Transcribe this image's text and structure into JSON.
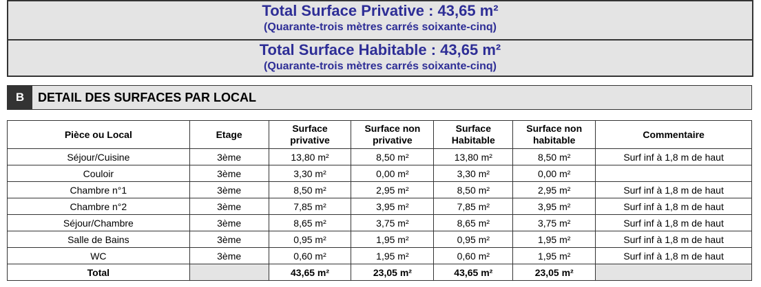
{
  "summary": [
    {
      "title": "Total Surface Privative : 43,65 m²",
      "subtitle": "(Quarante-trois mètres carrés soixante-cinq)"
    },
    {
      "title": "Total Surface Habitable : 43,65 m²",
      "subtitle": "(Quarante-trois mètres carrés soixante-cinq)"
    }
  ],
  "section": {
    "letter": "B",
    "title": "DETAIL DES SURFACES PAR LOCAL"
  },
  "table": {
    "header": [
      "Pièce ou Local",
      "Etage",
      "Surface\nprivative",
      "Surface non\nprivative",
      "Surface\nHabitable",
      "Surface non\nhabitable",
      "Commentaire"
    ],
    "rows": [
      [
        "Séjour/Cuisine",
        "3ème",
        "13,80 m²",
        "8,50 m²",
        "13,80 m²",
        "8,50 m²",
        "Surf inf à 1,8 m de haut"
      ],
      [
        "Couloir",
        "3ème",
        "3,30 m²",
        "0,00 m²",
        "3,30 m²",
        "0,00 m²",
        null
      ],
      [
        "Chambre n°1",
        "3ème",
        "8,50 m²",
        "2,95 m²",
        "8,50 m²",
        "2,95 m²",
        "Surf inf à 1,8 m de haut"
      ],
      [
        "Chambre n°2",
        "3ème",
        "7,85 m²",
        "3,95 m²",
        "7,85 m²",
        "3,95 m²",
        "Surf inf à 1,8 m de haut"
      ],
      [
        "Séjour/Chambre",
        "3ème",
        "8,65 m²",
        "3,75 m²",
        "8,65 m²",
        "3,75 m²",
        "Surf inf à 1,8 m de haut"
      ],
      [
        "Salle de Bains",
        "3ème",
        "0,95 m²",
        "1,95 m²",
        "0,95 m²",
        "1,95 m²",
        "Surf inf à 1,8 m de haut"
      ],
      [
        "WC",
        "3ème",
        "0,60 m²",
        "1,95 m²",
        "0,60 m²",
        "1,95 m²",
        "Surf inf à 1,8 m de haut"
      ]
    ],
    "total": [
      "Total",
      null,
      "43,65 m²",
      "23,05 m²",
      "43,65 m²",
      "23,05 m²",
      null
    ]
  }
}
